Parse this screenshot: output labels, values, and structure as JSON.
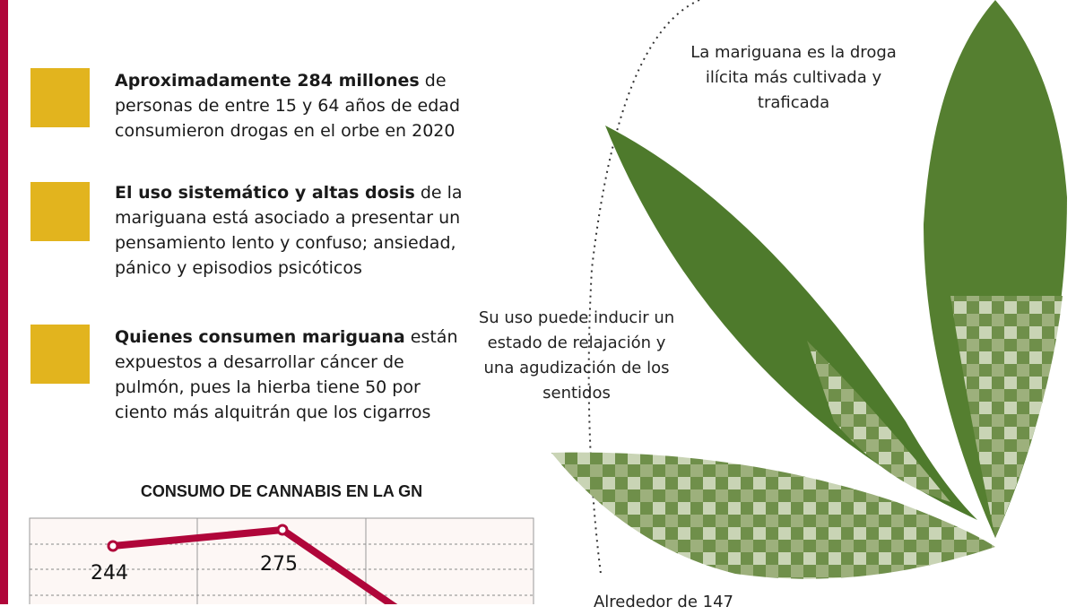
{
  "facts": [
    {
      "bold": "Aproximadamente 284 millones",
      "rest": " de personas de entre 15 y 64 años de edad consumieron drogas en el orbe en 2020",
      "icon": "bong-icon"
    },
    {
      "bold": "El uso sistemático y altas dosis",
      "rest": " de la mariguana está asociado a presentar un pensamiento lento y confuso; ansiedad, pánico y episodios psicóticos",
      "icon": "head-snail-icon"
    },
    {
      "bold": "Quienes consumen mariguana",
      "rest": " están expuestos a desarrollar cáncer de pulmón, pues la hierba tiene 50 por ciento más alquitrán que los cigarros",
      "icon": "lungs-icon"
    }
  ],
  "notes": {
    "top": "La mariguana es la droga ilícita más cultivada y traficada",
    "middle": "Su uso puede inducir un estado de relajación y una agudización de los sentidos",
    "bottom": "Alrededor de 147"
  },
  "colors": {
    "accent": "#b0063a",
    "icon_bg": "#e2b41e",
    "leaf": "#4e7a2c"
  },
  "chart_data": {
    "type": "line",
    "title": "CONSUMO DE CANNABIS EN LA GN",
    "values": [
      244,
      275
    ],
    "data_labels": [
      "244",
      "275"
    ],
    "grid": true
  }
}
